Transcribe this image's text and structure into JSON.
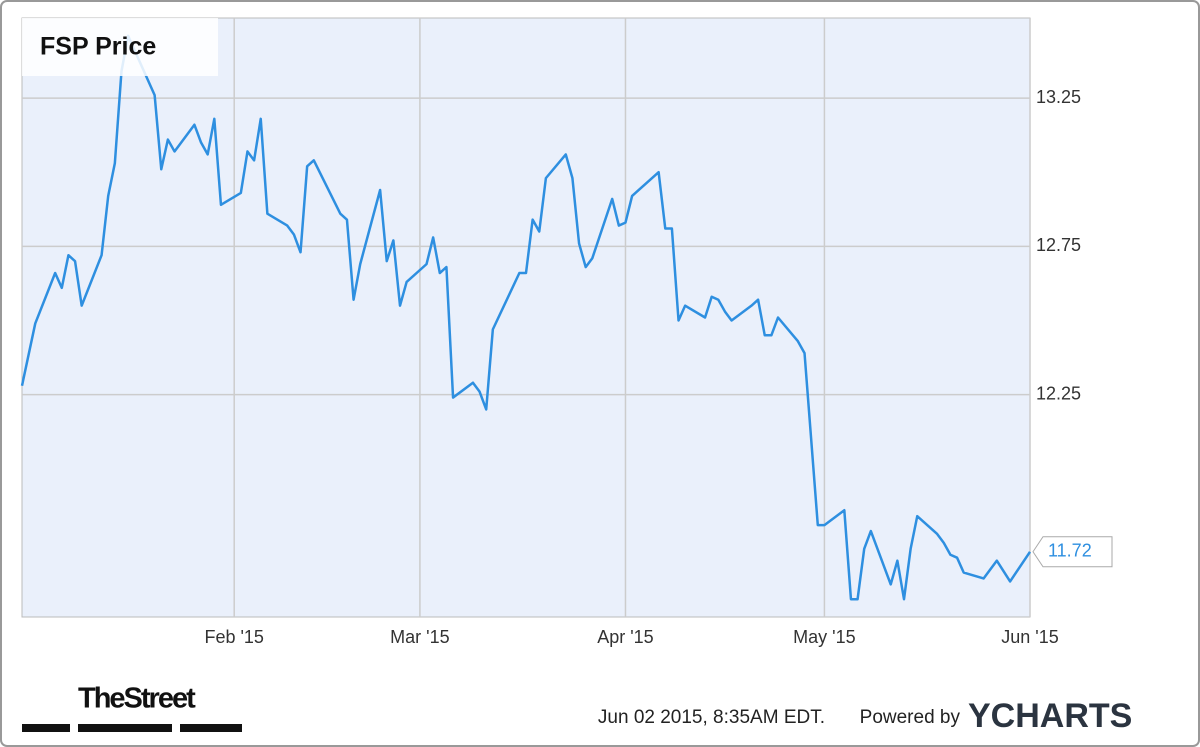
{
  "chart_data": {
    "type": "line",
    "title": "FSP Price",
    "x": [
      0,
      2,
      5,
      6,
      7,
      8,
      9,
      12,
      13,
      14,
      15,
      16,
      17,
      20,
      21,
      22,
      23,
      26,
      27,
      28,
      29,
      30,
      33,
      34,
      35,
      36,
      37,
      40,
      41,
      42,
      43,
      44,
      48,
      49,
      50,
      51,
      54,
      55,
      56,
      57,
      58,
      61,
      62,
      63,
      64,
      65,
      68,
      69,
      70,
      71,
      75,
      76,
      77,
      78,
      79,
      82,
      83,
      84,
      85,
      86,
      89,
      90,
      91,
      92,
      96,
      97,
      98,
      99,
      100,
      103,
      104,
      105,
      106,
      107,
      110,
      111,
      112,
      113,
      114,
      117,
      118,
      120,
      121,
      124,
      125,
      126,
      127,
      128,
      131,
      132,
      133,
      134,
      135,
      138,
      139,
      140,
      141,
      142,
      145,
      147,
      149,
      152
    ],
    "series": [
      {
        "name": "FSP",
        "color": "#2e8fe0",
        "values": [
          12.28,
          12.49,
          12.66,
          12.61,
          12.72,
          12.7,
          12.55,
          12.72,
          12.92,
          13.03,
          13.34,
          13.46,
          13.41,
          13.26,
          13.01,
          13.11,
          13.07,
          13.16,
          13.1,
          13.06,
          13.18,
          12.89,
          12.93,
          13.07,
          13.04,
          13.18,
          12.86,
          12.82,
          12.79,
          12.73,
          13.02,
          13.04,
          12.86,
          12.84,
          12.57,
          12.69,
          12.94,
          12.7,
          12.77,
          12.55,
          12.63,
          12.69,
          12.78,
          12.66,
          12.68,
          12.24,
          12.29,
          12.26,
          12.2,
          12.47,
          12.66,
          12.66,
          12.84,
          12.8,
          12.98,
          13.06,
          12.98,
          12.76,
          12.68,
          12.71,
          12.91,
          12.82,
          12.83,
          12.92,
          13.0,
          12.81,
          12.81,
          12.5,
          12.55,
          12.51,
          12.58,
          12.57,
          12.53,
          12.5,
          12.55,
          12.57,
          12.45,
          12.45,
          12.51,
          12.43,
          12.39,
          11.81,
          11.81,
          11.86,
          11.56,
          11.56,
          11.73,
          11.79,
          11.61,
          11.69,
          11.56,
          11.73,
          11.84,
          11.78,
          11.75,
          11.71,
          11.7,
          11.65,
          11.63,
          11.69,
          11.62,
          11.72
        ]
      }
    ],
    "xlim": [
      0,
      152
    ],
    "xticks": [
      {
        "value": 32,
        "label": "Feb '15"
      },
      {
        "value": 60,
        "label": "Mar '15"
      },
      {
        "value": 91,
        "label": "Apr '15"
      },
      {
        "value": 121,
        "label": "May '15"
      },
      {
        "value": 152,
        "label": "Jun '15"
      }
    ],
    "ylim": [
      11.5,
      13.52
    ],
    "yticks": [
      12.25,
      12.75,
      13.25
    ],
    "grid": true,
    "background": "#eaf0fb"
  },
  "footer": {
    "logo": "TheStreet",
    "timestamp": "Jun 02 2015, 8:35AM EDT.",
    "powered_by": "Powered by",
    "brand": "YCHARTS"
  }
}
